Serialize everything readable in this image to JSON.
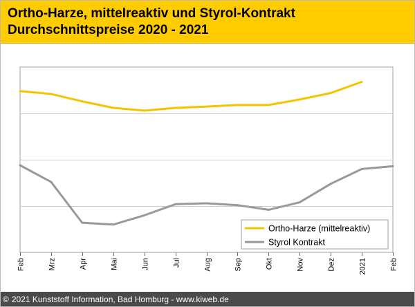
{
  "header": {
    "title_line1": "Ortho-Harze, mittelreaktiv und Styrol-Kontrakt",
    "title_line2": "Durchschnittspreise 2020 - 2021"
  },
  "footer": {
    "copyright_symbol": "©",
    "text": "2021 Kunststoff Information, Bad Homburg - www.kiweb.de"
  },
  "colors": {
    "header_bg": "#ffcc00",
    "ortho": "#f5c400",
    "styrol": "#999999",
    "grid": "#cccccc",
    "footer_bg": "#4a4a4a"
  },
  "chart_data": {
    "type": "line",
    "title": "Ortho-Harze, mittelreaktiv und Styrol-Kontrakt Durchschnittspreise 2020 - 2021",
    "xlabel": "",
    "ylabel": "",
    "categories": [
      "Feb",
      "Mrz",
      "Apr",
      "Mai",
      "Jun",
      "Jul",
      "Aug",
      "Sep",
      "Okt",
      "Nov",
      "Dez",
      "2021",
      "Feb"
    ],
    "ylim": [
      0,
      100
    ],
    "y_gridlines": [
      25,
      50,
      75
    ],
    "y_tick_labels_shown": false,
    "legend_position": "bottom-right",
    "series": [
      {
        "name": "Ortho-Harze (mittelreaktiv)",
        "color": "#f5c400",
        "values": [
          87,
          85.5,
          81.5,
          78,
          76.5,
          78,
          78.7,
          79.5,
          79.5,
          82.5,
          86,
          92,
          null
        ]
      },
      {
        "name": "Styrol Kontrakt",
        "color": "#999999",
        "values": [
          47,
          38,
          16,
          15,
          20,
          26,
          26.5,
          25.5,
          23,
          27,
          37,
          45,
          46.5
        ]
      }
    ]
  }
}
